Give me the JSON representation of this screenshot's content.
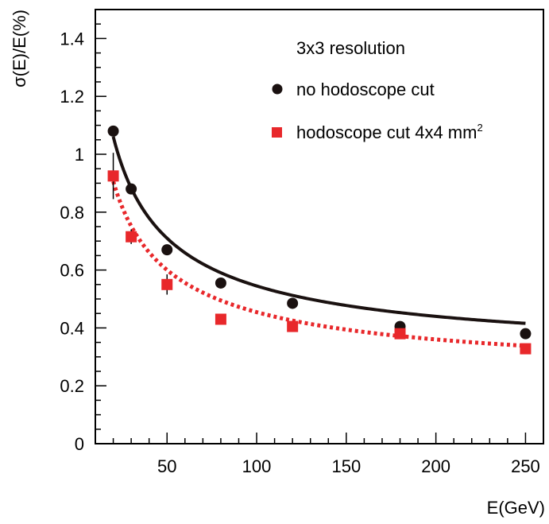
{
  "chart_data": {
    "type": "scatter",
    "title": "",
    "xlabel": "E(GeV)",
    "ylabel": "σ(E)/E(%)",
    "xlim": [
      10,
      260
    ],
    "ylim": [
      0,
      1.5
    ],
    "xticks": [
      50,
      100,
      150,
      200,
      250
    ],
    "yticks": [
      0,
      0.2,
      0.4,
      0.6,
      0.8,
      1,
      1.2,
      1.4
    ],
    "xtick_labels": [
      "50",
      "100",
      "150",
      "200",
      "250"
    ],
    "ytick_labels": [
      "0",
      "0.2",
      "0.4",
      "0.6",
      "0.8",
      "1",
      "1.2",
      "1.4"
    ],
    "grid": false,
    "legend": {
      "title": "3x3 resolution",
      "position": "top-right"
    },
    "series": [
      {
        "name": "no hodoscope cut",
        "marker": "circle",
        "color": "#1a1110",
        "fit_style": "solid",
        "x": [
          20,
          30,
          50,
          80,
          120,
          180,
          250
        ],
        "y": [
          1.08,
          0.88,
          0.67,
          0.555,
          0.485,
          0.405,
          0.38
        ],
        "yerr": [
          0.0,
          0.0,
          0.0,
          0.0,
          0.0,
          0.0,
          0.0
        ],
        "fit": {
          "a": 4.55,
          "b": 0.3,
          "xmin": 20,
          "xmax": 250
        }
      },
      {
        "name": "hodoscope cut 4x4 mm",
        "name_superscript": "2",
        "marker": "square",
        "color": "#e8282b",
        "fit_style": "dotted",
        "x": [
          20,
          30,
          50,
          80,
          120,
          180,
          250
        ],
        "y": [
          0.925,
          0.715,
          0.55,
          0.43,
          0.405,
          0.38,
          0.328
        ],
        "yerr": [
          0.08,
          0.025,
          0.035,
          0.0,
          0.0,
          0.0,
          0.0
        ],
        "fit": {
          "a": 3.92,
          "b": 0.23,
          "xmin": 20,
          "xmax": 250
        }
      }
    ]
  }
}
